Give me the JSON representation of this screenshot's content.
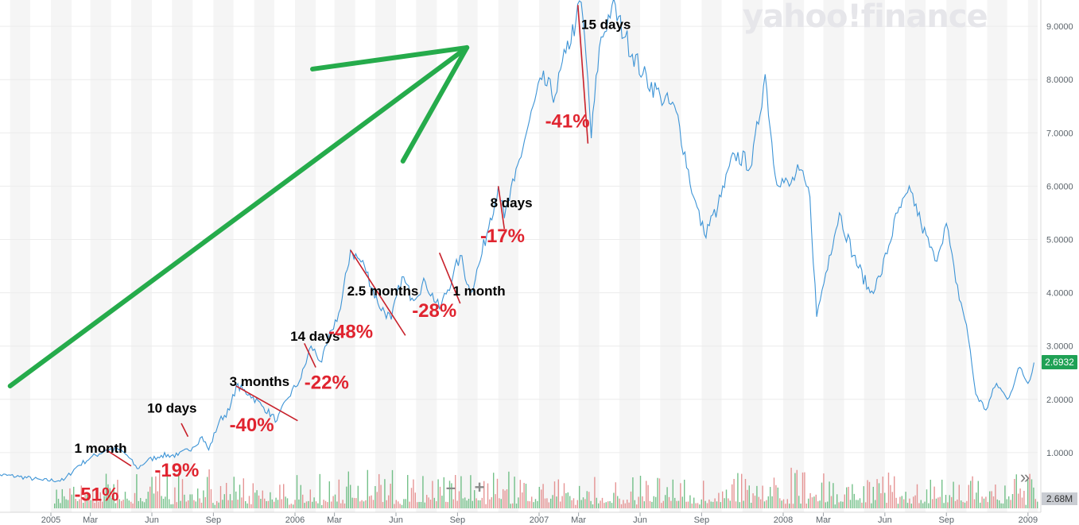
{
  "watermark": "yahoo!finance",
  "controls": {
    "zoom_out": "–",
    "zoom_in": "+",
    "more": "»"
  },
  "current_price_label": "2.6932",
  "current_volume_label": "2.68M",
  "colors": {
    "price_line": "#3d94d6",
    "volume_up": "#52b26d",
    "volume_down": "#e07a7a",
    "annotation_red": "#e0242f",
    "trend_arrow": "#25ab4b",
    "drawdown_line": "#c8202a",
    "band": "#f5f5f5",
    "axis_text": "#5b636a"
  },
  "chart_data": {
    "type": "line",
    "title": "",
    "xlabel": "",
    "ylabel": "",
    "x_tick_labels": [
      "2005",
      "Mar",
      "Jun",
      "Sep",
      "2006",
      "Mar",
      "Jun",
      "Sep",
      "2007",
      "Mar",
      "Jun",
      "Sep",
      "2008",
      "Mar",
      "Jun",
      "Sep",
      "2009"
    ],
    "y_tick_labels": [
      "1.0000",
      "2.0000",
      "3.0000",
      "4.0000",
      "5.0000",
      "6.0000",
      "7.0000",
      "8.0000",
      "9.0000"
    ],
    "ylim": [
      0,
      9.5
    ],
    "grid": true,
    "series": [
      {
        "type": "line",
        "values": [
          [
            "2004-10-01",
            0.6
          ],
          [
            "2004-11-15",
            0.55
          ],
          [
            "2004-12-20",
            0.48
          ],
          [
            "2005-01-20",
            0.48
          ],
          [
            "2005-02-10",
            0.75
          ],
          [
            "2005-03-01",
            0.9
          ],
          [
            "2005-03-25",
            1.05
          ],
          [
            "2005-04-10",
            1.08
          ],
          [
            "2005-04-25",
            0.95
          ],
          [
            "2005-05-10",
            0.7
          ],
          [
            "2005-05-25",
            0.85
          ],
          [
            "2005-06-15",
            0.95
          ],
          [
            "2005-07-10",
            0.95
          ],
          [
            "2005-08-01",
            1.1
          ],
          [
            "2005-08-15",
            1.3
          ],
          [
            "2005-08-25",
            1.05
          ],
          [
            "2005-09-10",
            1.6
          ],
          [
            "2005-09-25",
            1.8
          ],
          [
            "2005-10-05",
            2.25
          ],
          [
            "2005-10-25",
            2.1
          ],
          [
            "2005-11-15",
            1.85
          ],
          [
            "2005-12-05",
            1.6
          ],
          [
            "2005-12-20",
            2.0
          ],
          [
            "2006-01-10",
            2.4
          ],
          [
            "2006-01-25",
            3.0
          ],
          [
            "2006-02-10",
            2.7
          ],
          [
            "2006-02-25",
            3.3
          ],
          [
            "2006-03-10",
            3.7
          ],
          [
            "2006-03-25",
            4.8
          ],
          [
            "2006-04-15",
            4.5
          ],
          [
            "2006-05-05",
            3.8
          ],
          [
            "2006-05-25",
            3.5
          ],
          [
            "2006-06-10",
            4.3
          ],
          [
            "2006-06-25",
            3.9
          ],
          [
            "2006-07-15",
            4.2
          ],
          [
            "2006-08-05",
            3.7
          ],
          [
            "2006-08-25",
            4.3
          ],
          [
            "2006-09-05",
            4.7
          ],
          [
            "2006-09-20",
            4.0
          ],
          [
            "2006-10-05",
            4.6
          ],
          [
            "2006-10-20",
            5.4
          ],
          [
            "2006-11-01",
            6.0
          ],
          [
            "2006-11-10",
            5.4
          ],
          [
            "2006-11-25",
            6.1
          ],
          [
            "2006-12-15",
            7.1
          ],
          [
            "2007-01-05",
            8.0
          ],
          [
            "2007-01-25",
            7.7
          ],
          [
            "2007-02-10",
            8.5
          ],
          [
            "2007-02-25",
            9.1
          ],
          [
            "2007-03-05",
            9.45
          ],
          [
            "2007-03-15",
            8.0
          ],
          [
            "2007-03-20",
            6.9
          ],
          [
            "2007-04-01",
            8.6
          ],
          [
            "2007-04-20",
            9.4
          ],
          [
            "2007-05-10",
            8.8
          ],
          [
            "2007-06-05",
            8.1
          ],
          [
            "2007-07-01",
            7.7
          ],
          [
            "2007-07-25",
            7.4
          ],
          [
            "2007-08-20",
            5.8
          ],
          [
            "2007-09-05",
            5.1
          ],
          [
            "2007-09-25",
            5.6
          ],
          [
            "2007-10-20",
            6.6
          ],
          [
            "2007-11-15",
            6.4
          ],
          [
            "2007-12-05",
            8.1
          ],
          [
            "2007-12-20",
            6.2
          ],
          [
            "2008-01-10",
            6.0
          ],
          [
            "2008-01-25",
            6.3
          ],
          [
            "2008-02-10",
            5.8
          ],
          [
            "2008-02-20",
            3.55
          ],
          [
            "2008-03-10",
            4.7
          ],
          [
            "2008-03-25",
            5.5
          ],
          [
            "2008-04-15",
            4.7
          ],
          [
            "2008-05-10",
            4.0
          ],
          [
            "2008-05-25",
            4.3
          ],
          [
            "2008-06-20",
            5.5
          ],
          [
            "2008-07-10",
            5.9
          ],
          [
            "2008-07-25",
            5.3
          ],
          [
            "2008-08-15",
            4.6
          ],
          [
            "2008-09-01",
            5.3
          ],
          [
            "2008-09-15",
            4.2
          ],
          [
            "2008-10-01",
            3.4
          ],
          [
            "2008-10-15",
            2.1
          ],
          [
            "2008-10-30",
            1.8
          ],
          [
            "2008-11-15",
            2.3
          ],
          [
            "2008-12-01",
            2.0
          ],
          [
            "2008-12-20",
            2.6
          ],
          [
            "2009-01-01",
            2.3
          ],
          [
            "2009-01-10",
            2.69
          ]
        ]
      }
    ],
    "annotations": [
      {
        "text": "1 month",
        "kind": "duration",
        "x": "2005-02-05",
        "y": 1.0
      },
      {
        "text": "-51%",
        "kind": "drawdown",
        "x": "2005-02-05",
        "y": 0.1
      },
      {
        "text": "10 days",
        "kind": "duration",
        "x": "2005-05-25",
        "y": 1.75
      },
      {
        "text": "-19%",
        "kind": "drawdown",
        "x": "2005-06-05",
        "y": 0.55
      },
      {
        "text": "3 months",
        "kind": "duration",
        "x": "2005-09-25",
        "y": 2.25
      },
      {
        "text": "-40%",
        "kind": "drawdown",
        "x": "2005-09-25",
        "y": 1.4
      },
      {
        "text": "14 days",
        "kind": "duration",
        "x": "2005-12-25",
        "y": 3.1
      },
      {
        "text": "-22%",
        "kind": "drawdown",
        "x": "2006-01-15",
        "y": 2.2
      },
      {
        "text": "2.5 months",
        "kind": "duration",
        "x": "2006-03-20",
        "y": 3.95
      },
      {
        "text": "-48%",
        "kind": "drawdown",
        "x": "2006-02-20",
        "y": 3.15
      },
      {
        "text": "1 month",
        "kind": "duration",
        "x": "2006-08-25",
        "y": 3.95
      },
      {
        "text": "-28%",
        "kind": "drawdown",
        "x": "2006-06-25",
        "y": 3.55
      },
      {
        "text": "8 days",
        "kind": "duration",
        "x": "2006-10-20",
        "y": 5.6
      },
      {
        "text": "-17%",
        "kind": "drawdown",
        "x": "2006-10-05",
        "y": 4.95
      },
      {
        "text": "15 days",
        "kind": "duration",
        "x": "2007-03-05",
        "y": 8.95
      },
      {
        "text": "-41%",
        "kind": "drawdown",
        "x": "2007-01-10",
        "y": 7.1
      }
    ],
    "drawdown_segments": [
      {
        "x1": "2005-03-25",
        "y1": 1.05,
        "x2": "2005-05-01",
        "y2": 0.75
      },
      {
        "x1": "2005-07-15",
        "y1": 1.55,
        "x2": "2005-07-25",
        "y2": 1.3
      },
      {
        "x1": "2005-10-05",
        "y1": 2.25,
        "x2": "2006-01-05",
        "y2": 1.6
      },
      {
        "x1": "2006-01-15",
        "y1": 3.05,
        "x2": "2006-02-01",
        "y2": 2.6
      },
      {
        "x1": "2006-03-25",
        "y1": 4.8,
        "x2": "2006-06-15",
        "y2": 3.2
      },
      {
        "x1": "2006-08-05",
        "y1": 4.75,
        "x2": "2006-09-05",
        "y2": 3.8
      },
      {
        "x1": "2006-11-01",
        "y1": 6.0,
        "x2": "2006-11-10",
        "y2": 5.2
      },
      {
        "x1": "2007-02-28",
        "y1": 9.4,
        "x2": "2007-03-15",
        "y2": 6.8
      }
    ],
    "trend_arrow": {
      "x1": "2004-11-01",
      "y1": 2.25,
      "x2": "2006-09-15",
      "y2": 8.6
    }
  }
}
